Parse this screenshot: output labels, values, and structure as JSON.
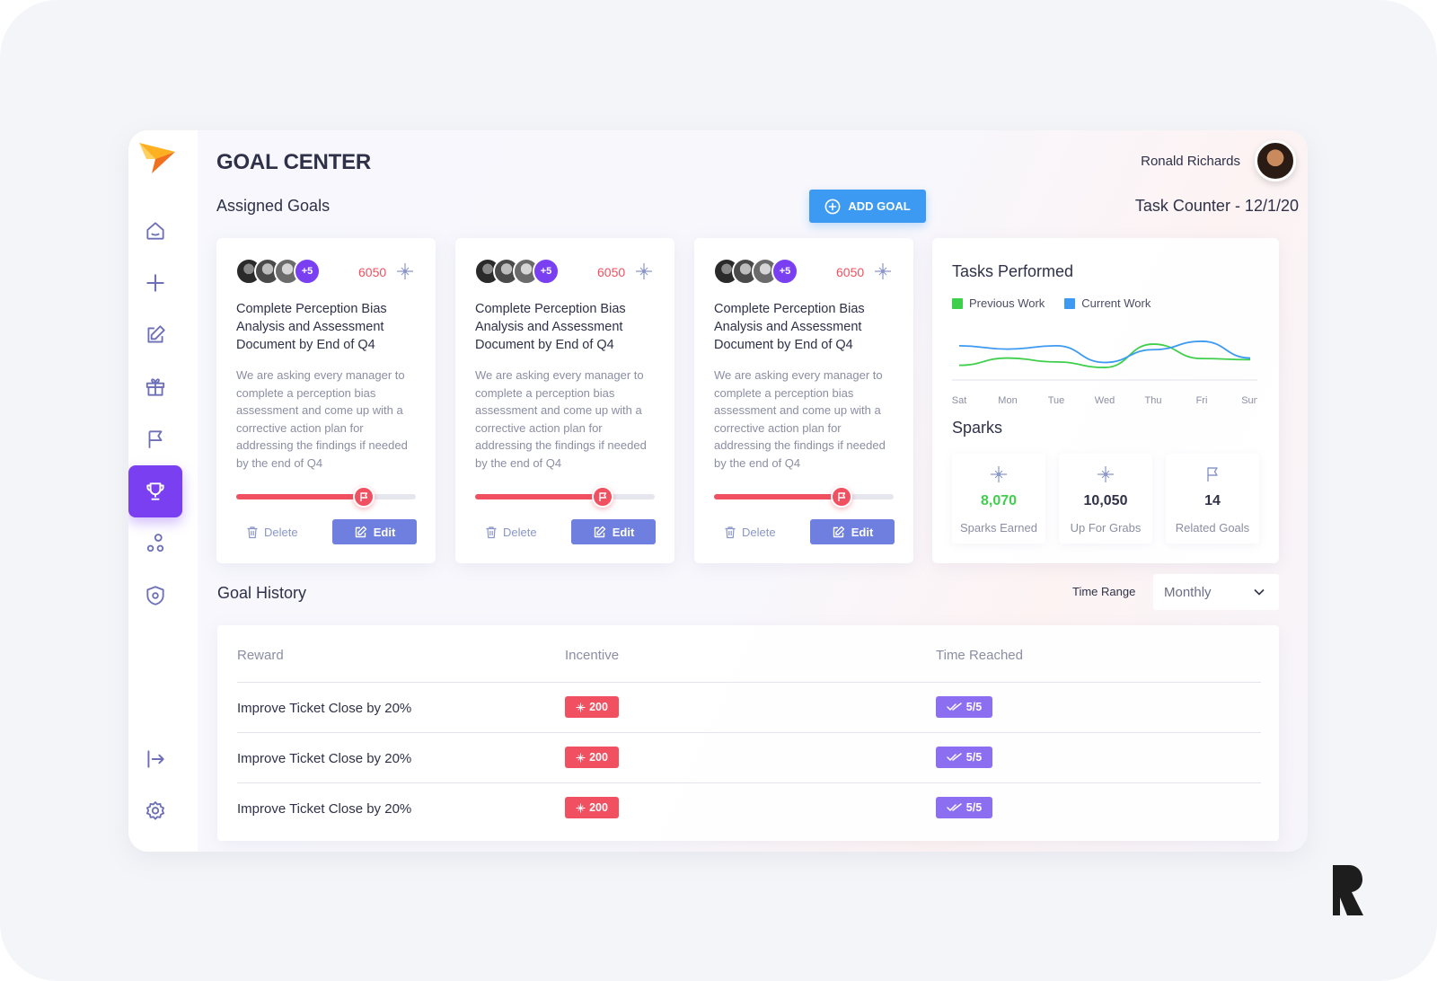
{
  "header": {
    "title": "GOAL CENTER",
    "user_name": "Ronald Richards"
  },
  "assigned": {
    "label": "Assigned Goals",
    "add_goal_label": "ADD GOAL",
    "task_counter": "Task Counter - 12/1/20"
  },
  "goal_cards": [
    {
      "extra_members": "+5",
      "points": "6050",
      "title": "Complete Perception Bias Analysis and Assessment Document by End of Q4",
      "description": "We are asking every manager to complete a perception bias assessment and come up  with a corrective action plan for addressing the findings if needed by the end of Q4",
      "progress": 0.71,
      "delete_label": "Delete",
      "edit_label": "Edit"
    },
    {
      "extra_members": "+5",
      "points": "6050",
      "title": "Complete Perception Bias Analysis and Assessment Document by End of Q4",
      "description": "We are asking every manager to complete a perception bias assessment and come up  with a corrective action plan for addressing the findings if needed by the end of Q4",
      "progress": 0.71,
      "delete_label": "Delete",
      "edit_label": "Edit"
    },
    {
      "extra_members": "+5",
      "points": "6050",
      "title": "Complete Perception Bias Analysis and Assessment Document by End of Q4",
      "description": "We are asking every manager to complete a perception bias assessment and come up  with a corrective action plan for addressing the findings if needed by the end of Q4",
      "progress": 0.71,
      "delete_label": "Delete",
      "edit_label": "Edit"
    }
  ],
  "tasks_performed": {
    "title": "Tasks Performed",
    "legend": [
      {
        "label": "Previous Work",
        "color": "#3ecf4c"
      },
      {
        "label": "Current Work",
        "color": "#3d9af2"
      }
    ]
  },
  "chart_data": {
    "type": "line",
    "title": "Tasks Performed",
    "x": [
      "Sat",
      "Mon",
      "Tue",
      "Wed",
      "Thu",
      "Fri",
      "Sun"
    ],
    "ylim": [
      0,
      10
    ],
    "grid": false,
    "legend_position": "top-left",
    "series": [
      {
        "name": "Previous Work",
        "color": "#3ecf4c",
        "values": [
          2.0,
          3.3,
          2.6,
          1.6,
          5.8,
          3.2,
          3.0
        ]
      },
      {
        "name": "Current Work",
        "color": "#3d9af2",
        "values": [
          5.5,
          4.9,
          5.5,
          2.5,
          4.8,
          6.3,
          3.3
        ]
      }
    ]
  },
  "sparks": {
    "title": "Sparks",
    "tiles": [
      {
        "value": "8,070",
        "label": "Sparks Earned",
        "icon": "spark-icon",
        "value_color": "#3ecf4c"
      },
      {
        "value": "10,050",
        "label": "Up For Grabs",
        "icon": "spark-icon",
        "value_color": "#2e3148"
      },
      {
        "value": "14",
        "label": "Related Goals",
        "icon": "flag-icon",
        "value_color": "#2e3148"
      }
    ]
  },
  "history": {
    "label": "Goal History",
    "time_range_label": "Time Range",
    "time_range_value": "Monthly",
    "columns": [
      "Reward",
      "Incentive",
      "Time Reached"
    ],
    "rows": [
      {
        "reward": "Improve Ticket Close by 20%",
        "incentive": "200",
        "time_reached": "5/5"
      },
      {
        "reward": "Improve Ticket Close by 20%",
        "incentive": "200",
        "time_reached": "5/5"
      },
      {
        "reward": "Improve Ticket Close by 20%",
        "incentive": "200",
        "time_reached": "5/5"
      }
    ]
  },
  "sidebar": {
    "items": [
      {
        "icon": "home-icon"
      },
      {
        "icon": "plus-icon"
      },
      {
        "icon": "edit-icon"
      },
      {
        "icon": "gift-icon"
      },
      {
        "icon": "flag-icon"
      },
      {
        "icon": "trophy-icon",
        "active": true
      },
      {
        "icon": "nodes-icon"
      },
      {
        "icon": "shield-icon"
      }
    ],
    "bottom": [
      {
        "icon": "logout-icon"
      },
      {
        "icon": "settings-icon"
      }
    ]
  },
  "colors": {
    "accent_purple": "#7b3ff2",
    "accent_blue": "#3d9af2",
    "accent_red": "#f0505f",
    "edit_blue": "#6e7fe0"
  }
}
